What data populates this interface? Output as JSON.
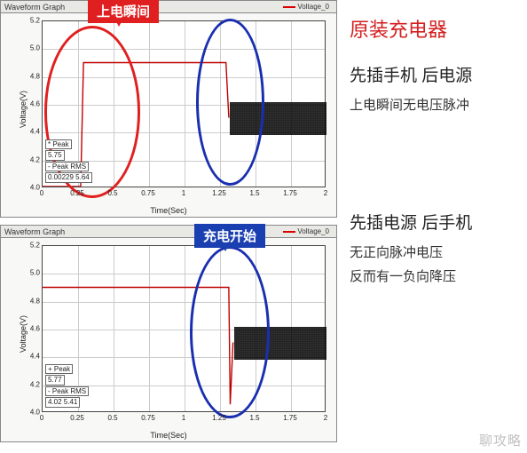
{
  "right_panel": {
    "title": "原装充电器",
    "block1_heading": "先插手机 后电源",
    "block1_detail1": "上电瞬间无电压脉冲",
    "block2_heading": "先插电源 后手机",
    "block2_detail1": "无正向脉冲电压",
    "block2_detail2": "反而有一负向降压"
  },
  "tags": {
    "power_on": {
      "text": "上电瞬间",
      "bg": "#e02020"
    },
    "charge_start": {
      "text": "充电开始",
      "bg": "#1a3fb0"
    }
  },
  "chart_common": {
    "panel_title": "Waveform Graph",
    "legend_label": "Voltage_0",
    "xlabel": "Time(Sec)",
    "ylabel": "Voltage(V)",
    "xlim": [
      0,
      2
    ],
    "xtick_step": 0.25,
    "xticks": [
      "0",
      "0.25",
      "0.5",
      "0.75",
      "1",
      "1.25",
      "1.5",
      "1.75",
      "2"
    ],
    "ylim": [
      4,
      5.2
    ],
    "ytick_step": 0.2,
    "yticks": [
      "4.0",
      "4.2",
      "4.4",
      "4.6",
      "4.8",
      "5.0",
      "5.2"
    ],
    "grid_color": "#cccccc",
    "trace_color": "#c00000",
    "background_color": "#ffffff"
  },
  "chart1": {
    "type": "line",
    "description": "Power-on then charge. Voltage steps from ~4.0 to ~4.9 at t≈0.27s (power-on), stays at 4.9, dips to ~4.5 with noise band starting t≈1.3s (charging).",
    "segments": [
      {
        "t0": 0.0,
        "v0": 4.0,
        "t1": 0.27,
        "v1": 4.0
      },
      {
        "t0": 0.27,
        "v0": 4.0,
        "t1": 0.29,
        "v1": 4.9
      },
      {
        "t0": 0.29,
        "v0": 4.9,
        "t1": 1.3,
        "v1": 4.9
      },
      {
        "t0": 1.3,
        "v0": 4.9,
        "t1": 1.32,
        "v1": 4.5
      }
    ],
    "noise_region": {
      "t0": 1.32,
      "t1": 2.0,
      "v_center": 4.5,
      "v_amp": 0.12
    },
    "ellipses": [
      {
        "color": "#e02020",
        "cx_t": 0.35,
        "cy_v": 4.55,
        "rt": 0.34,
        "rv": 0.62
      },
      {
        "color": "#1a2fb0",
        "cx_t": 1.32,
        "cy_v": 4.62,
        "rt": 0.24,
        "rv": 0.6
      }
    ],
    "peak_box": {
      "rows": [
        "* Peak",
        "5.75",
        "- Peak    RMS",
        "0.00229   5.64"
      ]
    }
  },
  "chart2": {
    "type": "line",
    "description": "Voltage constant ~4.9 from t=0, brief negative dip to ~4.05 at t≈1.33s, then noise band ~4.5 (charging).",
    "segments": [
      {
        "t0": 0.0,
        "v0": 4.9,
        "t1": 1.32,
        "v1": 4.9
      },
      {
        "t0": 1.32,
        "v0": 4.9,
        "t1": 1.33,
        "v1": 4.05
      },
      {
        "t0": 1.33,
        "v0": 4.05,
        "t1": 1.35,
        "v1": 4.5
      }
    ],
    "noise_region": {
      "t0": 1.35,
      "t1": 2.0,
      "v_center": 4.5,
      "v_amp": 0.12
    },
    "ellipses": [
      {
        "color": "#1a2fb0",
        "cx_t": 1.32,
        "cy_v": 4.58,
        "rt": 0.28,
        "rv": 0.62
      }
    ],
    "peak_box": {
      "rows": [
        "+ Peak",
        "5.77",
        "- Peak    RMS",
        "4.02      5.41"
      ]
    }
  },
  "watermark": "聊攻略"
}
